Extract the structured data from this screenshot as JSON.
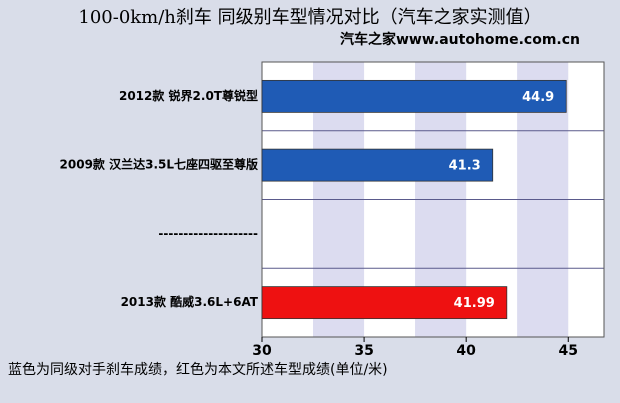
{
  "chart_data": {
    "type": "hbar",
    "title": "100-0km/h刹车 同级别车型情况对比（汽车之家实测值）",
    "subtitle": "汽车之家www.autohome.com.cn",
    "note": "蓝色为同级对手刹车成绩，红色为本文所述车型成绩(单位/米)",
    "categories": [
      "2012款 锐界2.0T尊锐型",
      "2009款 汉兰达3.5L七座四驱至尊版",
      "--------------------",
      "2013款 酷威3.6L+6AT"
    ],
    "values": [
      44.9,
      41.3,
      null,
      41.99
    ],
    "colors": [
      "#1f5bb5",
      "#1f5bb5",
      null,
      "#ee1111"
    ],
    "xlim": [
      30,
      46.75
    ],
    "xticks": [
      30,
      35,
      40,
      45
    ]
  }
}
